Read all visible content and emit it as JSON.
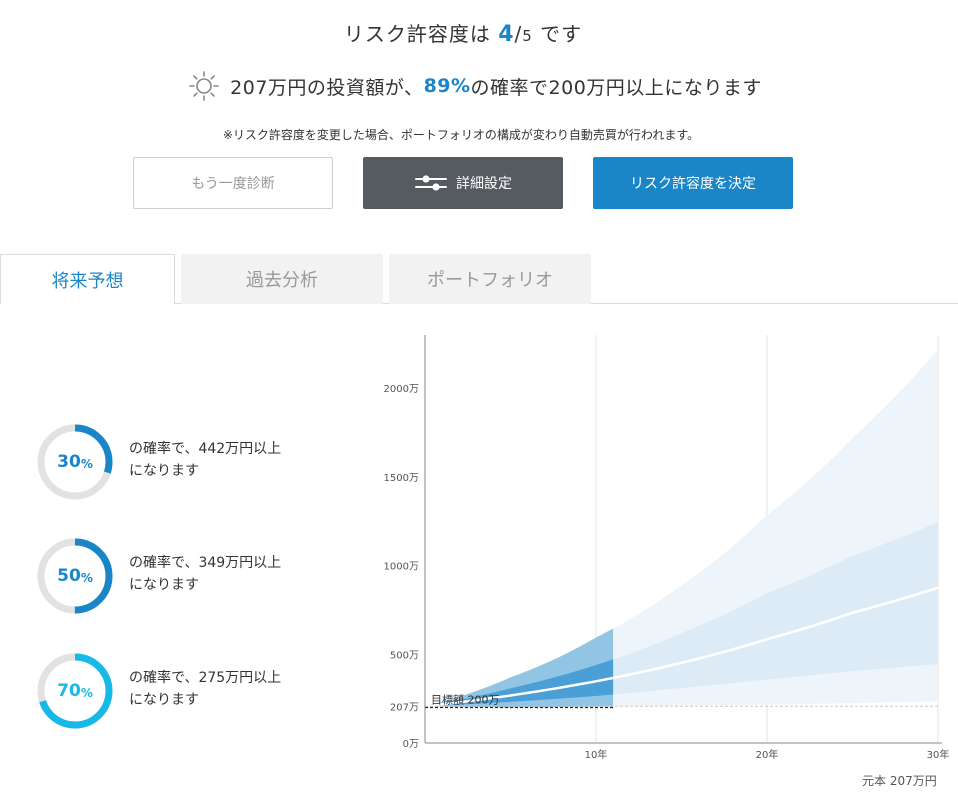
{
  "header": {
    "title_prefix": "リスク許容度は ",
    "level": "4",
    "slash": "/",
    "max": "5",
    "title_suffix": " です"
  },
  "summary": {
    "icon": "sun-icon",
    "prefix": "207万円の投資額が、",
    "probability": "89%",
    "suffix": "の確率で200万円以上になります"
  },
  "notice": "※リスク許容度を変更した場合、ポートフォリオの構成が変わり自動売買が行われます。",
  "buttons": {
    "retry": "もう一度診断",
    "detail": "詳細設定",
    "detail_icon": "sliders-icon",
    "decide": "リスク許容度を決定"
  },
  "tabs": [
    {
      "label": "将来予想",
      "active": true
    },
    {
      "label": "過去分析",
      "active": false
    },
    {
      "label": "ポートフォリオ",
      "active": false
    }
  ],
  "probabilities": [
    {
      "percent": 30,
      "num": "30",
      "sign": "%",
      "line1": "の確率で、442万円以上",
      "line2": "になります",
      "color": "#1a86c8"
    },
    {
      "percent": 50,
      "num": "50",
      "sign": "%",
      "line1": "の確率で、349万円以上",
      "line2": "になります",
      "color": "#1a86c8"
    },
    {
      "percent": 70,
      "num": "70",
      "sign": "%",
      "line1": "の確率で、275万円以上",
      "line2": "になります",
      "color": "#16b9e8"
    }
  ],
  "colors": {
    "accent": "#1a86c8",
    "accent_light": "#16b9e8",
    "ring_track": "#e2e2e2",
    "dark_button": "#565b61"
  },
  "chart_data": {
    "type": "area",
    "x_unit": "年",
    "y_unit": "万",
    "xlim": [
      0,
      30
    ],
    "ylim": [
      0,
      2300
    ],
    "y_ticks": [
      0,
      207,
      500,
      1000,
      1500,
      2000
    ],
    "y_tick_labels": [
      "0万",
      "207万",
      "500万",
      "1000万",
      "1500万",
      "2000万"
    ],
    "x_ticks": [
      10,
      20,
      30
    ],
    "x_tick_labels": [
      "10年",
      "20年",
      "30年"
    ],
    "target_label": "目標額 200万",
    "target_value": 200,
    "principal_value": 207,
    "highlight_until_year": 11,
    "median": [
      [
        0,
        207
      ],
      [
        5,
        268
      ],
      [
        10,
        348
      ],
      [
        15,
        452
      ],
      [
        20,
        585
      ],
      [
        25,
        734
      ],
      [
        30,
        875
      ]
    ],
    "inner_upper": [
      [
        0,
        207
      ],
      [
        5,
        308
      ],
      [
        10,
        440
      ],
      [
        15,
        620
      ],
      [
        20,
        845
      ],
      [
        25,
        1055
      ],
      [
        30,
        1245
      ]
    ],
    "inner_lower": [
      [
        0,
        207
      ],
      [
        5,
        232
      ],
      [
        10,
        265
      ],
      [
        15,
        310
      ],
      [
        20,
        358
      ],
      [
        25,
        405
      ],
      [
        30,
        445
      ]
    ],
    "outer_upper": [
      [
        0,
        207
      ],
      [
        5,
        370
      ],
      [
        10,
        595
      ],
      [
        15,
        890
      ],
      [
        20,
        1285
      ],
      [
        25,
        1720
      ],
      [
        30,
        2220
      ]
    ],
    "outer_lower": [
      [
        0,
        207
      ],
      [
        5,
        200
      ],
      [
        10,
        205
      ],
      [
        15,
        210
      ],
      [
        20,
        216
      ],
      [
        25,
        224
      ],
      [
        30,
        235
      ]
    ],
    "grid": true
  },
  "principal_label": "元本 207万円"
}
